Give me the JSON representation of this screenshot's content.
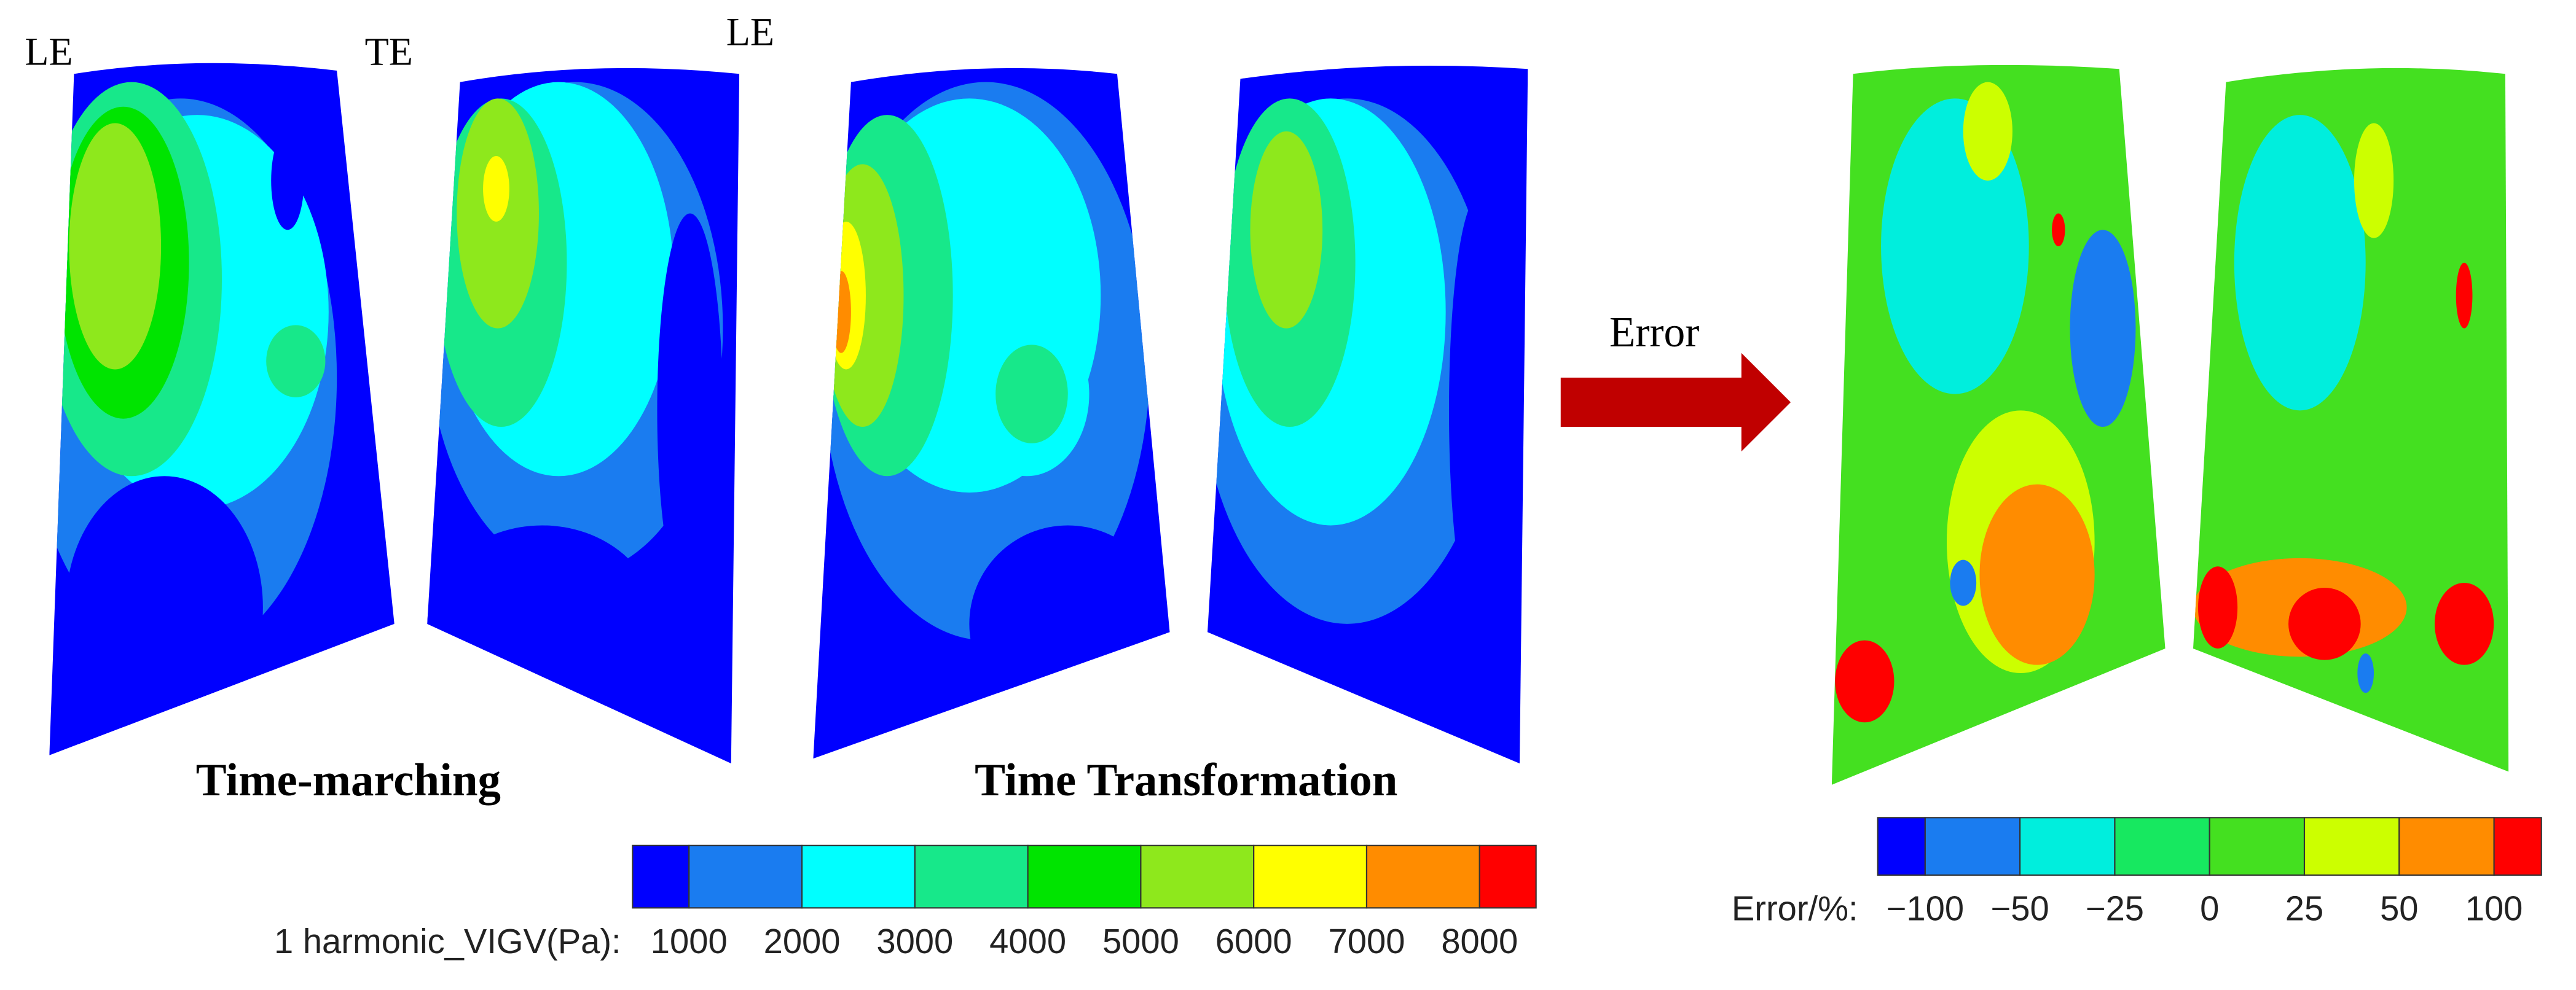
{
  "blade_labels": [
    "LE",
    "TE",
    "LE"
  ],
  "captions": [
    "Time-marching",
    "Time Transformation"
  ],
  "arrow_label": "Error",
  "colorbars": [
    {
      "label": "1 harmonic_VIGV(Pa):",
      "ticks": [
        1000,
        2000,
        3000,
        4000,
        5000,
        6000,
        7000,
        8000
      ],
      "colors": [
        "#0000ff",
        "#1a7cf0",
        "#00ffff",
        "#17e88a",
        "#00e400",
        "#8ee81c",
        "#ffff00",
        "#ff8c00",
        "#ff0000"
      ]
    },
    {
      "label": "Error/%:",
      "ticks": [
        {
          "value": -100,
          "label": "−100"
        },
        {
          "value": -50,
          "label": "−50"
        },
        {
          "value": -25,
          "label": "−25"
        },
        0,
        25,
        50,
        100
      ],
      "colors": [
        "#0000ff",
        "#1a7cf0",
        "#00eedd",
        "#17e860",
        "#44e020",
        "#ccff00",
        "#ff8c00",
        "#ff0000"
      ]
    }
  ]
}
